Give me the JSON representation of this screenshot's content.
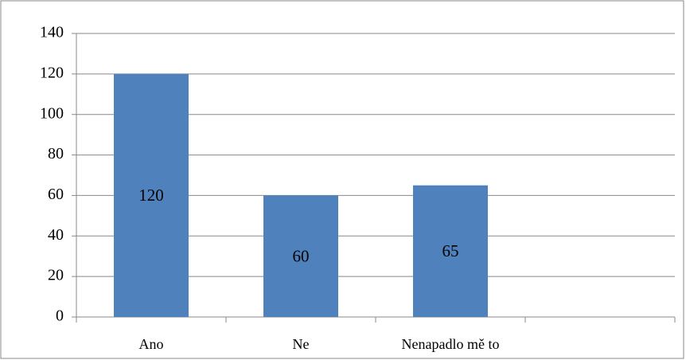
{
  "chart_data": {
    "type": "bar",
    "categories": [
      "Ano",
      "Ne",
      "Nenapadlo mě to",
      null
    ],
    "values": [
      120,
      60,
      65,
      null
    ],
    "color": "#4f81bd",
    "ylim": [
      0,
      140
    ],
    "yticks": [
      0,
      20,
      40,
      60,
      80,
      100,
      120,
      140
    ],
    "grid": true,
    "data_labels": true
  }
}
